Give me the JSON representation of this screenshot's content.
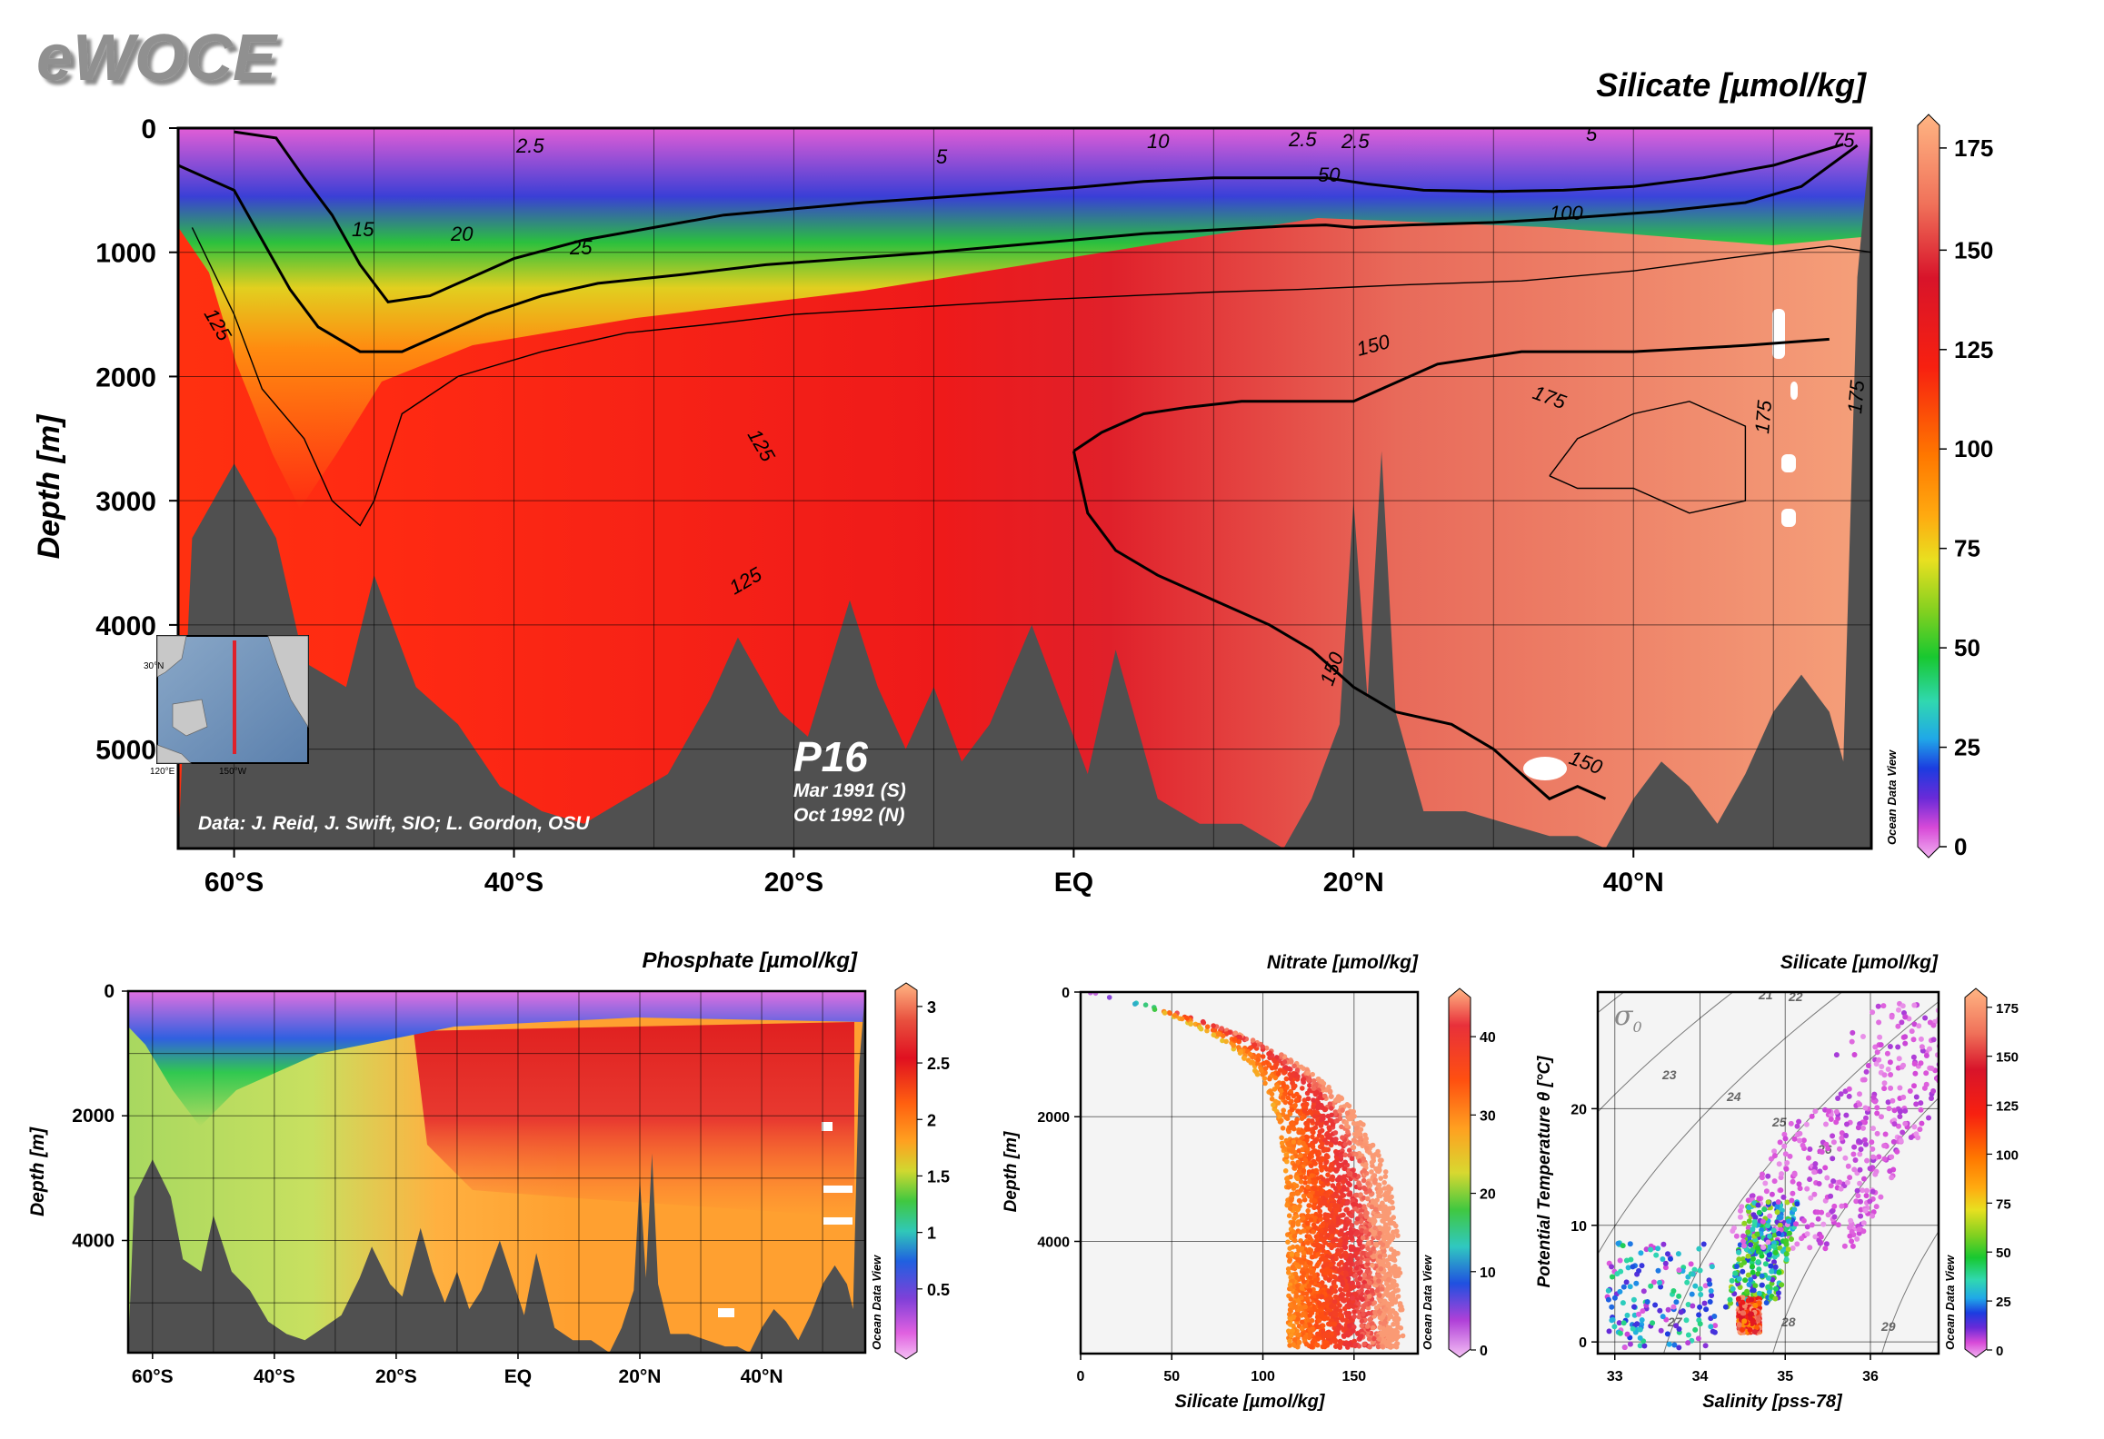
{
  "logo": "eWOCE",
  "main_section": {
    "title": "Silicate [µmol/kg]",
    "ylabel": "Depth [m]",
    "section_name": "P16",
    "cruise_dates": [
      "Mar 1991 (S)",
      "Oct 1992 (N)"
    ],
    "credit": "Data: J. Reid, J. Swift, SIO; L. Gordon, OSU",
    "watermark": "Ocean Data View",
    "inset_labels": [
      "30°N",
      "120°E",
      "150°W"
    ],
    "colorbar_ticks": [
      "175",
      "150",
      "125",
      "100",
      "75",
      "50",
      "25",
      "0"
    ],
    "contour_labels": [
      "2.5",
      "5",
      "10",
      "2.5",
      "2.5",
      "5",
      "75",
      "50",
      "100",
      "15",
      "20",
      "25",
      "125",
      "150",
      "125",
      "125",
      "175",
      "175",
      "175",
      "150",
      "150"
    ]
  },
  "phosphate_section": {
    "title": "Phosphate [µmol/kg]",
    "ylabel": "Depth [m]",
    "watermark": "Ocean Data View",
    "colorbar_ticks": [
      "3",
      "2.5",
      "2",
      "1.5",
      "1",
      "0.5"
    ]
  },
  "nitrate_plot": {
    "title": "Nitrate [µmol/kg]",
    "xlabel": "Silicate [µmol/kg]",
    "ylabel": "Depth [m]",
    "watermark": "Ocean Data View",
    "colorbar_ticks": [
      "40",
      "30",
      "20",
      "10",
      "0"
    ]
  },
  "ts_plot": {
    "title": "Silicate [µmol/kg]",
    "xlabel": "Salinity [pss-78]",
    "ylabel": "Potential Temperature θ [°C]",
    "sigma_label": "σ",
    "sigma_sub": "0",
    "watermark": "Ocean Data View",
    "colorbar_ticks": [
      "175",
      "150",
      "125",
      "100",
      "75",
      "50",
      "25",
      "0"
    ],
    "isopycnal_labels": [
      "21",
      "22",
      "23",
      "24",
      "25",
      "26",
      "27",
      "28",
      "29"
    ]
  },
  "chart_data": [
    {
      "type": "heatmap",
      "title": "Silicate [µmol/kg]",
      "ylabel": "Depth [m]",
      "xlabel": "",
      "x_ticks": [
        "60°S",
        "40°S",
        "20°S",
        "EQ",
        "20°N",
        "40°N"
      ],
      "x_tick_values": [
        -60,
        -40,
        -20,
        0,
        20,
        40
      ],
      "xlim": [
        -64,
        57
      ],
      "y_ticks": [
        "0",
        "1000",
        "2000",
        "3000",
        "4000",
        "5000"
      ],
      "y_tick_values": [
        0,
        1000,
        2000,
        3000,
        4000,
        5000
      ],
      "ylim": [
        0,
        5800
      ],
      "zlim": [
        0,
        180
      ],
      "grid": true,
      "bottom_depth": [
        [
          -63,
          3300
        ],
        [
          -60,
          2700
        ],
        [
          -57,
          3300
        ],
        [
          -55,
          4300
        ],
        [
          -52,
          4500
        ],
        [
          -50,
          3600
        ],
        [
          -47,
          4500
        ],
        [
          -44,
          4800
        ],
        [
          -41,
          5300
        ],
        [
          -38,
          5500
        ],
        [
          -35,
          5600
        ],
        [
          -32,
          5400
        ],
        [
          -29,
          5200
        ],
        [
          -26,
          4600
        ],
        [
          -24,
          4100
        ],
        [
          -21,
          4700
        ],
        [
          -19,
          4900
        ],
        [
          -16,
          3800
        ],
        [
          -14,
          4500
        ],
        [
          -12,
          5000
        ],
        [
          -10,
          4500
        ],
        [
          -8,
          5100
        ],
        [
          -6,
          4800
        ],
        [
          -3,
          4000
        ],
        [
          -1,
          4600
        ],
        [
          1,
          5200
        ],
        [
          3,
          4200
        ],
        [
          6,
          5400
        ],
        [
          9,
          5600
        ],
        [
          12,
          5600
        ],
        [
          15,
          5800
        ],
        [
          17,
          5400
        ],
        [
          19,
          4800
        ],
        [
          20,
          3000
        ],
        [
          21,
          4600
        ],
        [
          22,
          2600
        ],
        [
          23,
          4700
        ],
        [
          25,
          5500
        ],
        [
          28,
          5500
        ],
        [
          31,
          5600
        ],
        [
          34,
          5700
        ],
        [
          36,
          5700
        ],
        [
          38,
          5800
        ],
        [
          40,
          5400
        ],
        [
          42,
          5100
        ],
        [
          44,
          5300
        ],
        [
          46,
          5600
        ],
        [
          48,
          5200
        ],
        [
          50,
          4700
        ],
        [
          52,
          4400
        ],
        [
          54,
          4700
        ],
        [
          55,
          5100
        ],
        [
          56,
          1200
        ],
        [
          57,
          0
        ]
      ],
      "contours": [
        {
          "level": 50,
          "points": [
            [
              -60,
              30
            ],
            [
              -57,
              80
            ],
            [
              -55,
              400
            ],
            [
              -53,
              700
            ],
            [
              -51,
              1100
            ],
            [
              -49,
              1400
            ],
            [
              -46,
              1350
            ],
            [
              -43,
              1200
            ],
            [
              -40,
              1050
            ],
            [
              -35,
              900
            ],
            [
              -30,
              800
            ],
            [
              -25,
              700
            ],
            [
              -20,
              650
            ],
            [
              -15,
              600
            ],
            [
              -10,
              560
            ],
            [
              -5,
              520
            ],
            [
              0,
              480
            ],
            [
              5,
              430
            ],
            [
              10,
              400
            ],
            [
              15,
              400
            ],
            [
              18,
              400
            ],
            [
              21,
              450
            ],
            [
              25,
              500
            ],
            [
              30,
              510
            ],
            [
              35,
              500
            ],
            [
              40,
              470
            ],
            [
              45,
              400
            ],
            [
              50,
              300
            ],
            [
              55,
              130
            ]
          ]
        },
        {
          "level": 100,
          "points": [
            [
              -64,
              300
            ],
            [
              -60,
              500
            ],
            [
              -58,
              900
            ],
            [
              -56,
              1300
            ],
            [
              -54,
              1600
            ],
            [
              -51,
              1800
            ],
            [
              -48,
              1800
            ],
            [
              -45,
              1650
            ],
            [
              -42,
              1500
            ],
            [
              -38,
              1350
            ],
            [
              -34,
              1250
            ],
            [
              -28,
              1180
            ],
            [
              -22,
              1100
            ],
            [
              -16,
              1050
            ],
            [
              -10,
              1000
            ],
            [
              -5,
              950
            ],
            [
              0,
              900
            ],
            [
              5,
              850
            ],
            [
              10,
              820
            ],
            [
              15,
              790
            ],
            [
              18,
              780
            ],
            [
              20,
              800
            ],
            [
              24,
              780
            ],
            [
              30,
              760
            ],
            [
              36,
              720
            ],
            [
              42,
              670
            ],
            [
              48,
              600
            ],
            [
              52,
              470
            ],
            [
              56,
              140
            ]
          ]
        },
        {
          "level": 125,
          "points": [
            [
              -63,
              800
            ],
            [
              -60,
              1500
            ],
            [
              -58,
              2100
            ],
            [
              -55,
              2500
            ],
            [
              -53,
              3000
            ],
            [
              -51,
              3200
            ],
            [
              -50,
              3000
            ],
            [
              -48,
              2300
            ],
            [
              -44,
              2000
            ],
            [
              -38,
              1800
            ],
            [
              -32,
              1650
            ],
            [
              -26,
              1580
            ],
            [
              -20,
              1500
            ],
            [
              -14,
              1460
            ],
            [
              -8,
              1420
            ],
            [
              -2,
              1380
            ],
            [
              4,
              1350
            ],
            [
              10,
              1320
            ],
            [
              16,
              1300
            ],
            [
              20,
              1280
            ],
            [
              24,
              1260
            ],
            [
              32,
              1230
            ],
            [
              40,
              1150
            ],
            [
              48,
              1030
            ],
            [
              54,
              950
            ],
            [
              57,
              1000
            ]
          ]
        },
        {
          "level": 150,
          "points": [
            [
              0,
              2600
            ],
            [
              2,
              2450
            ],
            [
              5,
              2300
            ],
            [
              8,
              2250
            ],
            [
              12,
              2200
            ],
            [
              16,
              2200
            ],
            [
              20,
              2200
            ],
            [
              22,
              2100
            ],
            [
              26,
              1900
            ],
            [
              32,
              1800
            ],
            [
              40,
              1800
            ],
            [
              48,
              1750
            ],
            [
              54,
              1700
            ]
          ]
        },
        {
          "level": 150,
          "points": [
            [
              0,
              2600
            ],
            [
              1,
              3100
            ],
            [
              3,
              3400
            ],
            [
              6,
              3600
            ],
            [
              10,
              3800
            ],
            [
              14,
              4000
            ],
            [
              17,
              4200
            ],
            [
              20,
              4500
            ],
            [
              23,
              4700
            ],
            [
              27,
              4800
            ],
            [
              30,
              5000
            ],
            [
              32,
              5200
            ],
            [
              34,
              5400
            ],
            [
              36,
              5300
            ],
            [
              38,
              5400
            ]
          ]
        },
        {
          "level": 175,
          "points": [
            [
              34,
              2800
            ],
            [
              36,
              2500
            ],
            [
              40,
              2300
            ],
            [
              44,
              2200
            ],
            [
              48,
              2400
            ],
            [
              48,
              3000
            ],
            [
              44,
              3100
            ],
            [
              40,
              2900
            ],
            [
              36,
              2900
            ],
            [
              34,
              2800
            ]
          ]
        }
      ]
    },
    {
      "type": "heatmap",
      "title": "Phosphate [µmol/kg]",
      "ylabel": "Depth [m]",
      "xlabel": "",
      "x_ticks": [
        "60°S",
        "40°S",
        "20°S",
        "EQ",
        "20°N",
        "40°N"
      ],
      "x_tick_values": [
        -60,
        -40,
        -20,
        0,
        20,
        40
      ],
      "xlim": [
        -64,
        57
      ],
      "y_ticks": [
        "0",
        "2000",
        "4000"
      ],
      "y_tick_values": [
        0,
        2000,
        4000
      ],
      "ylim": [
        0,
        5800
      ],
      "zlim": [
        0,
        3.2
      ],
      "grid": true
    },
    {
      "type": "scatter",
      "title": "Nitrate [µmol/kg]",
      "xlabel": "Silicate [µmol/kg]",
      "ylabel": "Depth [m]",
      "x_ticks": [
        "0",
        "50",
        "100",
        "150"
      ],
      "x_tick_values": [
        0,
        50,
        100,
        150
      ],
      "xlim": [
        0,
        185
      ],
      "y_ticks": [
        "0",
        "2000",
        "4000"
      ],
      "y_tick_values": [
        0,
        2000,
        4000
      ],
      "ylim": [
        0,
        5800
      ],
      "zlim": [
        0,
        45
      ],
      "grid": true
    },
    {
      "type": "scatter",
      "title": "Silicate [µmol/kg]",
      "xlabel": "Salinity [pss-78]",
      "ylabel": "Potential Temperature θ [°C]",
      "x_ticks": [
        "33",
        "34",
        "35",
        "36"
      ],
      "x_tick_values": [
        33,
        34,
        35,
        36
      ],
      "xlim": [
        32.8,
        36.8
      ],
      "y_ticks": [
        "0",
        "10",
        "20"
      ],
      "y_tick_values": [
        0,
        10,
        20
      ],
      "ylim": [
        -1,
        30
      ],
      "zlim": [
        0,
        180
      ],
      "grid": true
    }
  ]
}
